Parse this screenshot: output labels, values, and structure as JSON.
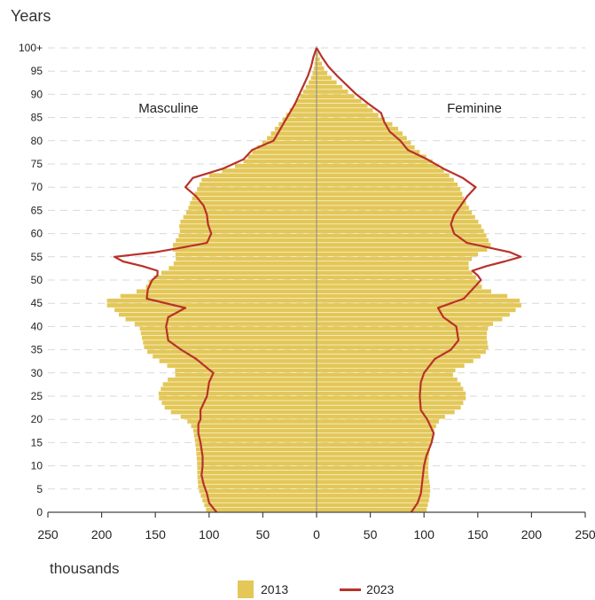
{
  "chart_data": {
    "type": "bar",
    "subtype": "population-pyramid",
    "y_title": "Years",
    "x_unit": "thousands",
    "left_label": "Masculine",
    "right_label": "Feminine",
    "x_ticks": [
      "250",
      "200",
      "150",
      "100",
      "50",
      "0",
      "50",
      "100",
      "150",
      "200",
      "250"
    ],
    "y_ticks": [
      "0",
      "5",
      "10",
      "15",
      "20",
      "25",
      "30",
      "35",
      "40",
      "45",
      "50",
      "55",
      "60",
      "65",
      "70",
      "75",
      "80",
      "85",
      "90",
      "95",
      "100+"
    ],
    "xlim": [
      -250,
      250
    ],
    "ylim": [
      0,
      100
    ],
    "grid": "horizontal-dashed",
    "legend_position": "bottom",
    "colors": {
      "bars": "#e3c757",
      "line": "#b8322a",
      "center": "#888888"
    },
    "series": [
      {
        "name": "2013",
        "kind": "bars",
        "age_anchors": [
          0,
          3,
          5,
          8,
          10,
          13,
          15,
          18,
          20,
          22,
          25,
          28,
          30,
          33,
          35,
          38,
          40,
          42,
          44,
          45,
          46,
          48,
          50,
          53,
          55,
          57,
          60,
          62,
          65,
          67,
          70,
          72,
          75,
          78,
          80,
          83,
          85,
          88,
          90,
          93,
          95,
          98,
          100
        ],
        "male": [
          102,
          107,
          110,
          111,
          111,
          112,
          113,
          115,
          122,
          140,
          148,
          142,
          128,
          150,
          160,
          163,
          165,
          182,
          190,
          200,
          190,
          160,
          155,
          134,
          130,
          135,
          127,
          128,
          120,
          117,
          110,
          106,
          70,
          58,
          48,
          37,
          30,
          20,
          14,
          6,
          3,
          1,
          0
        ],
        "female": [
          102,
          105,
          106,
          104,
          104,
          105,
          107,
          110,
          115,
          133,
          140,
          133,
          125,
          150,
          160,
          158,
          160,
          177,
          188,
          193,
          185,
          155,
          150,
          140,
          146,
          163,
          157,
          152,
          143,
          138,
          133,
          126,
          111,
          93,
          86,
          74,
          60,
          45,
          32,
          16,
          8,
          2,
          0
        ]
      },
      {
        "name": "2023",
        "kind": "line",
        "age_anchors": [
          0,
          2,
          4,
          6,
          8,
          10,
          12,
          15,
          17,
          19,
          20,
          22,
          25,
          28,
          30,
          33,
          35,
          37,
          40,
          42,
          44,
          46,
          48,
          50,
          51,
          52,
          53,
          54,
          55,
          56,
          57,
          58,
          60,
          62,
          64,
          66,
          68,
          70,
          72,
          74,
          76,
          78,
          80,
          82,
          84,
          86,
          88,
          90,
          92,
          94,
          96,
          98,
          100
        ],
        "male": [
          93,
          100,
          102,
          105,
          107,
          106,
          106,
          108,
          110,
          110,
          108,
          108,
          102,
          100,
          96,
          112,
          126,
          138,
          140,
          138,
          122,
          158,
          157,
          153,
          148,
          148,
          162,
          180,
          188,
          150,
          125,
          102,
          98,
          101,
          102,
          105,
          112,
          122,
          115,
          87,
          68,
          60,
          40,
          35,
          30,
          25,
          20,
          16,
          12,
          8,
          5,
          3,
          0
        ],
        "female": [
          88,
          94,
          97,
          98,
          99,
          100,
          102,
          107,
          109,
          105,
          103,
          97,
          96,
          97,
          100,
          110,
          125,
          132,
          130,
          118,
          113,
          137,
          145,
          153,
          150,
          145,
          158,
          175,
          190,
          180,
          160,
          140,
          128,
          125,
          128,
          134,
          140,
          148,
          136,
          118,
          103,
          85,
          78,
          68,
          63,
          60,
          48,
          37,
          28,
          19,
          11,
          5,
          0
        ]
      }
    ]
  }
}
